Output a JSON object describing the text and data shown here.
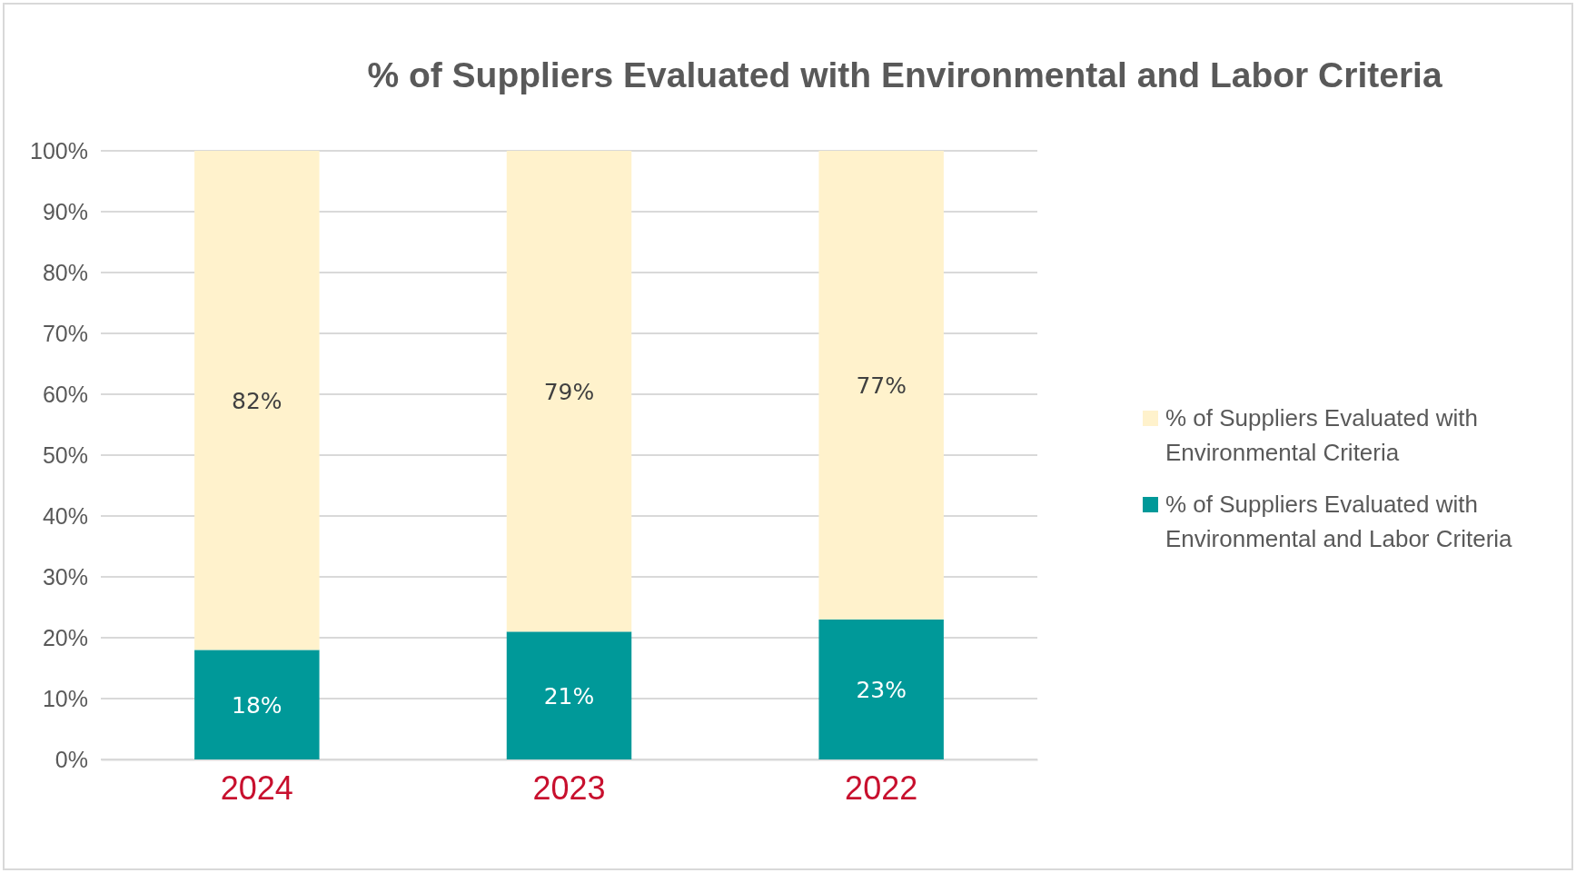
{
  "chart_data": {
    "type": "bar",
    "title": "% of Suppliers Evaluated with Environmental and Labor Criteria",
    "categories": [
      "2024",
      "2023",
      "2022"
    ],
    "stacked": true,
    "series": [
      {
        "name": "% of Suppliers Evaluated with Environmental and Labor Criteria",
        "color": "#009999",
        "values": [
          18,
          21,
          23
        ],
        "value_labels": [
          "18%",
          "21%",
          "23%"
        ]
      },
      {
        "name": "% of Suppliers Evaluated with Environmental Criteria",
        "color": "#fff2cc",
        "values": [
          82,
          79,
          77
        ],
        "value_labels": [
          "82%",
          "79%",
          "77%"
        ]
      }
    ],
    "ylim": [
      0,
      100
    ],
    "yticks": [
      {
        "value": 0,
        "label": "0%"
      },
      {
        "value": 10,
        "label": "10%"
      },
      {
        "value": 20,
        "label": "20%"
      },
      {
        "value": 30,
        "label": "30%"
      },
      {
        "value": 40,
        "label": "40%"
      },
      {
        "value": 50,
        "label": "50%"
      },
      {
        "value": 60,
        "label": "60%"
      },
      {
        "value": 70,
        "label": "70%"
      },
      {
        "value": 80,
        "label": "80%"
      },
      {
        "value": 90,
        "label": "90%"
      },
      {
        "value": 100,
        "label": "100%"
      }
    ],
    "grid": "y",
    "legend": "right"
  }
}
